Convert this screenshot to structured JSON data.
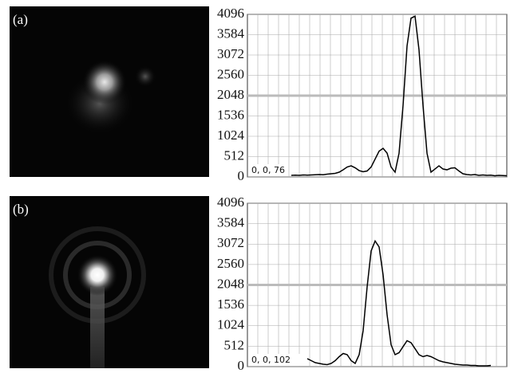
{
  "chart_data": [
    {
      "type": "line",
      "panel_label": "(a)",
      "annotation": "0, 0, 76",
      "color": "#000000",
      "ylim": [
        0,
        4096
      ],
      "yticks": [
        0,
        512,
        1024,
        1536,
        2048,
        2560,
        3072,
        3584,
        4096
      ],
      "grid": true,
      "reference_line": 2048,
      "values": [
        null,
        null,
        null,
        null,
        null,
        null,
        null,
        null,
        null,
        null,
        null,
        40,
        45,
        40,
        50,
        45,
        50,
        55,
        60,
        55,
        70,
        80,
        90,
        120,
        180,
        250,
        280,
        230,
        160,
        130,
        150,
        250,
        450,
        650,
        720,
        600,
        250,
        120,
        600,
        1800,
        3300,
        4000,
        4050,
        3200,
        1800,
        600,
        120,
        200,
        280,
        200,
        180,
        220,
        230,
        150,
        80,
        60,
        50,
        60,
        40,
        50,
        40,
        45,
        30,
        40,
        35,
        30
      ]
    },
    {
      "type": "line",
      "panel_label": "(b)",
      "annotation": "0, 0, 102",
      "color": "#000000",
      "ylim": [
        0,
        4096
      ],
      "yticks": [
        0,
        512,
        1024,
        1536,
        2048,
        2560,
        3072,
        3584,
        4096
      ],
      "grid": true,
      "reference_line": 2048,
      "values": [
        null,
        null,
        null,
        null,
        null,
        null,
        null,
        null,
        null,
        null,
        null,
        null,
        null,
        null,
        null,
        200,
        150,
        100,
        80,
        60,
        50,
        80,
        150,
        250,
        330,
        300,
        150,
        80,
        300,
        900,
        2000,
        2900,
        3150,
        3000,
        2300,
        1300,
        550,
        300,
        350,
        500,
        650,
        600,
        450,
        300,
        250,
        280,
        250,
        200,
        150,
        120,
        100,
        80,
        60,
        50,
        40,
        40,
        30,
        30,
        20,
        20,
        20,
        30,
        null,
        null,
        null,
        null
      ]
    }
  ]
}
